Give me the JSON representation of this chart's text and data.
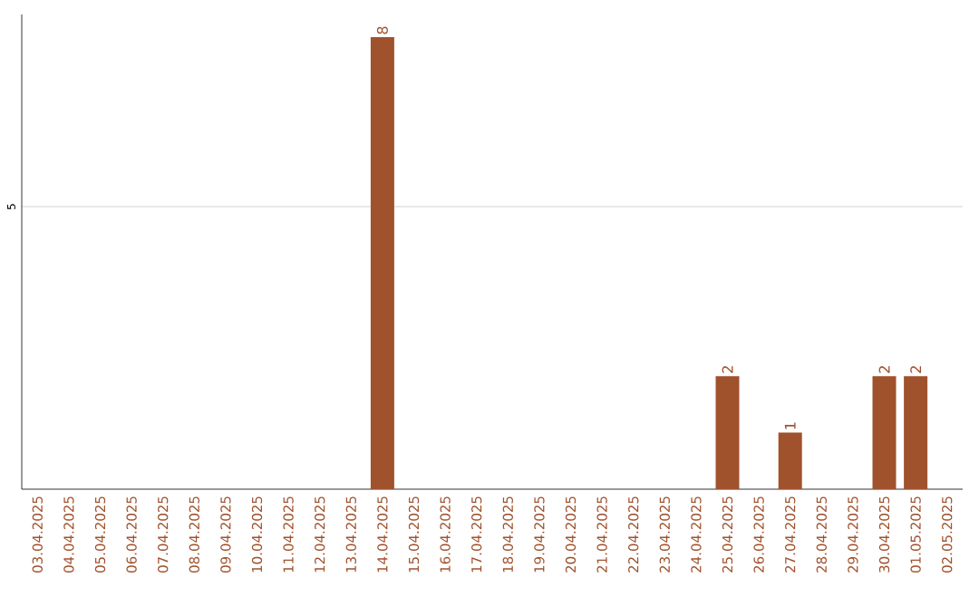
{
  "chart_data": {
    "type": "bar",
    "categories": [
      "03.04.2025",
      "04.04.2025",
      "05.04.2025",
      "06.04.2025",
      "07.04.2025",
      "08.04.2025",
      "09.04.2025",
      "10.04.2025",
      "11.04.2025",
      "12.04.2025",
      "13.04.2025",
      "14.04.2025",
      "15.04.2025",
      "16.04.2025",
      "17.04.2025",
      "18.04.2025",
      "19.04.2025",
      "20.04.2025",
      "21.04.2025",
      "22.04.2025",
      "23.04.2025",
      "24.04.2025",
      "25.04.2025",
      "26.04.2025",
      "27.04.2025",
      "28.04.2025",
      "29.04.2025",
      "30.04.2025",
      "01.05.2025",
      "02.05.2025"
    ],
    "values": [
      0,
      0,
      0,
      0,
      0,
      0,
      0,
      0,
      0,
      0,
      0,
      8,
      0,
      0,
      0,
      0,
      0,
      0,
      0,
      0,
      0,
      0,
      2,
      0,
      1,
      0,
      0,
      2,
      2,
      0
    ],
    "value_labels": [
      null,
      null,
      null,
      null,
      null,
      null,
      null,
      null,
      null,
      null,
      null,
      "8",
      null,
      null,
      null,
      null,
      null,
      null,
      null,
      null,
      null,
      null,
      "2",
      null,
      "1",
      null,
      null,
      "2",
      "2",
      null
    ],
    "color": "#a0522d",
    "ylim": [
      0,
      8.4
    ],
    "yticks": [
      5
    ],
    "grid": "y"
  }
}
